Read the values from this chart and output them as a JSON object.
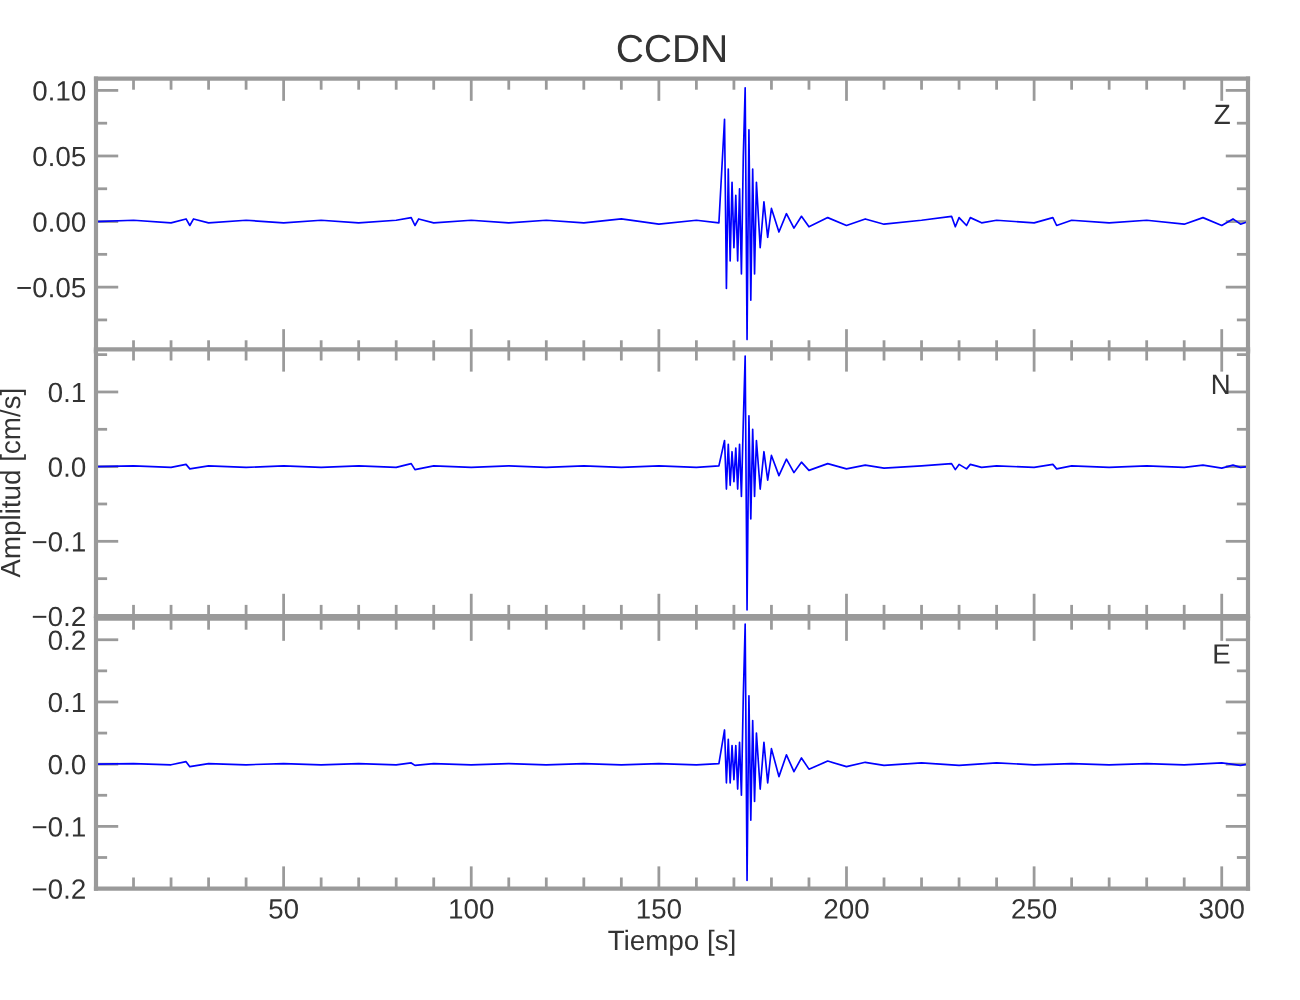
{
  "chart_data": [
    {
      "type": "line",
      "title": "CCDN",
      "annotations": [
        "Z"
      ],
      "tick_labels": "y",
      "xlim": [
        0,
        307
      ],
      "xticks": [
        50,
        100,
        150,
        200,
        250,
        300
      ],
      "ylim": [
        -0.099,
        0.109
      ],
      "yticks": [
        {
          "value": 0.1,
          "label": "0.10"
        },
        {
          "value": 0.05,
          "label": "0.05"
        },
        {
          "value": 0.0,
          "label": "0.00"
        },
        {
          "value": -0.05,
          "label": "−0.05"
        }
      ],
      "grid": false,
      "legend": false,
      "series": [
        {
          "color": "#0000ff",
          "x": [
            0,
            10,
            20,
            24,
            25,
            26,
            30,
            40,
            50,
            60,
            70,
            80,
            84,
            85,
            86,
            90,
            100,
            110,
            120,
            130,
            140,
            150,
            160,
            166,
            167.5,
            168,
            168.5,
            169,
            169.5,
            170,
            170.5,
            171,
            171.5,
            172,
            172.5,
            173,
            173.5,
            174,
            174.5,
            175,
            175.5,
            176,
            177,
            178,
            179,
            180,
            182,
            184,
            186,
            188,
            190,
            195,
            200,
            205,
            210,
            220,
            228,
            229,
            230,
            232,
            233,
            236,
            240,
            250,
            255,
            256,
            260,
            270,
            280,
            290,
            295,
            300,
            303,
            305,
            307
          ],
          "values": [
            0.0,
            0.001,
            -0.001,
            0.002,
            -0.003,
            0.002,
            -0.001,
            0.001,
            -0.001,
            0.001,
            -0.001,
            0.001,
            0.003,
            -0.003,
            0.002,
            -0.001,
            0.001,
            -0.001,
            0.001,
            -0.001,
            0.002,
            -0.002,
            0.001,
            -0.001,
            0.078,
            -0.051,
            0.04,
            -0.03,
            0.03,
            -0.02,
            0.02,
            -0.03,
            0.025,
            -0.04,
            0.05,
            0.102,
            -0.09,
            0.07,
            -0.06,
            0.04,
            -0.04,
            0.03,
            -0.02,
            0.015,
            -0.012,
            0.01,
            -0.008,
            0.006,
            -0.005,
            0.004,
            -0.004,
            0.003,
            -0.003,
            0.002,
            -0.002,
            0.001,
            0.004,
            -0.004,
            0.003,
            -0.003,
            0.003,
            -0.001,
            0.001,
            -0.001,
            0.003,
            -0.003,
            0.001,
            -0.001,
            0.001,
            -0.002,
            0.003,
            -0.003,
            0.002,
            -0.002,
            0.0
          ]
        }
      ]
    },
    {
      "type": "line",
      "ylabel": "Amplitud [cm/s]",
      "annotations": [
        "N"
      ],
      "tick_labels": "y",
      "xlim": [
        0,
        307
      ],
      "xticks": [
        50,
        100,
        150,
        200,
        250,
        300
      ],
      "ylim": [
        -0.2,
        0.157
      ],
      "yticks": [
        {
          "value": 0.1,
          "label": "0.1"
        },
        {
          "value": 0.0,
          "label": "0.0"
        },
        {
          "value": -0.1,
          "label": "−0.1"
        },
        {
          "value": -0.2,
          "label": "−0.2"
        }
      ],
      "grid": false,
      "legend": false,
      "series": [
        {
          "color": "#0000ff",
          "x": [
            0,
            10,
            20,
            24,
            25,
            30,
            40,
            50,
            60,
            70,
            80,
            84,
            85,
            90,
            100,
            110,
            120,
            130,
            140,
            150,
            160,
            166,
            167.5,
            168,
            168.5,
            169,
            169.5,
            170,
            170.5,
            171,
            171.5,
            172,
            172.5,
            173,
            173.5,
            174,
            174.5,
            175,
            175.5,
            176,
            177,
            178,
            179,
            180,
            182,
            184,
            186,
            188,
            190,
            195,
            200,
            205,
            210,
            220,
            228,
            229,
            230,
            232,
            233,
            236,
            240,
            250,
            255,
            256,
            260,
            270,
            280,
            290,
            295,
            300,
            303,
            305,
            307
          ],
          "values": [
            0.0,
            0.001,
            -0.001,
            0.003,
            -0.003,
            0.001,
            -0.001,
            0.001,
            -0.001,
            0.001,
            -0.001,
            0.004,
            -0.004,
            0.001,
            -0.001,
            0.001,
            -0.001,
            0.001,
            -0.001,
            0.001,
            -0.001,
            0.001,
            0.035,
            -0.03,
            0.03,
            -0.025,
            0.02,
            -0.02,
            0.025,
            -0.03,
            0.03,
            -0.04,
            0.06,
            0.148,
            -0.192,
            0.068,
            -0.07,
            0.05,
            -0.04,
            0.035,
            -0.03,
            0.02,
            -0.018,
            0.015,
            -0.012,
            0.01,
            -0.008,
            0.006,
            -0.005,
            0.004,
            -0.003,
            0.002,
            -0.002,
            0.001,
            0.004,
            -0.004,
            0.003,
            -0.003,
            0.003,
            -0.001,
            0.001,
            -0.001,
            0.003,
            -0.003,
            0.001,
            -0.001,
            0.001,
            -0.001,
            0.002,
            -0.002,
            0.002,
            -0.001,
            0.0
          ]
        }
      ]
    },
    {
      "type": "line",
      "xlabel": "Tiempo [s]",
      "annotations": [
        "E"
      ],
      "xlim": [
        0,
        307
      ],
      "xticks": [
        50,
        100,
        150,
        200,
        250,
        300
      ],
      "ylim": [
        -0.2,
        0.234
      ],
      "yticks": [
        {
          "value": 0.2,
          "label": "0.2"
        },
        {
          "value": 0.1,
          "label": "0.1"
        },
        {
          "value": 0.0,
          "label": "0.0"
        },
        {
          "value": -0.1,
          "label": "−0.1"
        },
        {
          "value": -0.2,
          "label": "−0.2"
        }
      ],
      "grid": false,
      "legend": false,
      "series": [
        {
          "color": "#0000ff",
          "x": [
            0,
            10,
            20,
            24,
            25,
            30,
            40,
            50,
            60,
            70,
            80,
            84,
            85,
            90,
            100,
            110,
            120,
            130,
            140,
            150,
            160,
            166,
            167.5,
            168,
            168.5,
            169,
            169.5,
            170,
            170.5,
            171,
            171.5,
            172,
            172.5,
            173,
            173.5,
            174,
            174.5,
            175,
            175.5,
            176,
            177,
            178,
            179,
            180,
            182,
            184,
            186,
            188,
            190,
            195,
            200,
            205,
            210,
            220,
            230,
            240,
            250,
            260,
            270,
            280,
            290,
            300,
            305,
            307
          ],
          "values": [
            0.0,
            0.001,
            -0.001,
            0.004,
            -0.004,
            0.001,
            -0.001,
            0.001,
            -0.001,
            0.001,
            -0.001,
            0.002,
            -0.002,
            0.001,
            -0.001,
            0.001,
            -0.001,
            0.001,
            -0.001,
            0.001,
            -0.001,
            0.001,
            0.055,
            -0.03,
            0.04,
            -0.03,
            0.03,
            -0.025,
            0.03,
            -0.04,
            0.035,
            -0.05,
            0.11,
            0.225,
            -0.187,
            0.11,
            -0.09,
            0.07,
            -0.06,
            0.05,
            -0.04,
            0.035,
            -0.03,
            0.025,
            -0.02,
            0.015,
            -0.012,
            0.01,
            -0.008,
            0.005,
            -0.004,
            0.003,
            -0.002,
            0.002,
            -0.002,
            0.002,
            -0.001,
            0.001,
            -0.001,
            0.001,
            -0.001,
            0.002,
            -0.002,
            0.0
          ]
        }
      ]
    }
  ]
}
